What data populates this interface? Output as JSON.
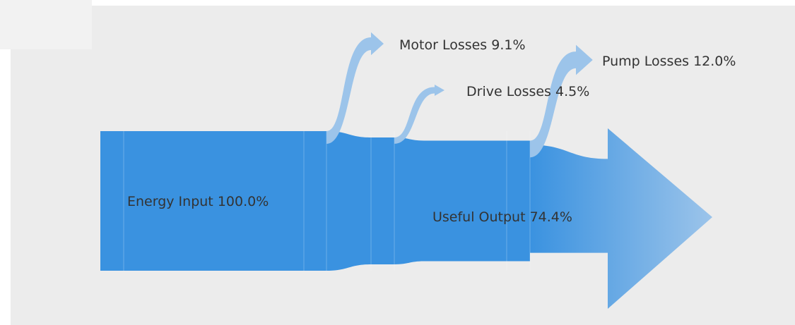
{
  "chart_data": {
    "type": "sankey",
    "categories": [
      "Energy Input",
      "Motor Losses",
      "Drive Losses",
      "Pump Losses",
      "Useful Output"
    ],
    "values": [
      100,
      9.1,
      4.5,
      12,
      74.4
    ],
    "value_labels": [
      "100.0%",
      "9.1%",
      "4.5%",
      "12.0%",
      "74.4%"
    ],
    "color": "#3a92e0",
    "loss_color": "#9cc4ea"
  }
}
